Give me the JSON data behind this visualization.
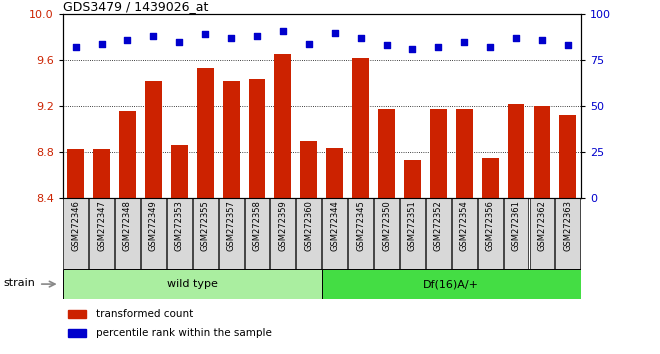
{
  "title": "GDS3479 / 1439026_at",
  "categories": [
    "GSM272346",
    "GSM272347",
    "GSM272348",
    "GSM272349",
    "GSM272353",
    "GSM272355",
    "GSM272357",
    "GSM272358",
    "GSM272359",
    "GSM272360",
    "GSM272344",
    "GSM272345",
    "GSM272350",
    "GSM272351",
    "GSM272352",
    "GSM272354",
    "GSM272356",
    "GSM272361",
    "GSM272362",
    "GSM272363"
  ],
  "bar_values": [
    8.83,
    8.83,
    9.16,
    9.42,
    8.86,
    9.53,
    9.42,
    9.44,
    9.65,
    8.9,
    8.84,
    9.62,
    9.18,
    8.73,
    9.18,
    9.18,
    8.75,
    9.22,
    9.2,
    9.12
  ],
  "percentile_values": [
    82,
    84,
    86,
    88,
    85,
    89,
    87,
    88,
    91,
    84,
    90,
    87,
    83,
    81,
    82,
    85,
    82,
    87,
    86,
    83
  ],
  "ylim_left": [
    8.4,
    10.0
  ],
  "ylim_right": [
    0,
    100
  ],
  "yticks_left": [
    8.4,
    8.8,
    9.2,
    9.6,
    10.0
  ],
  "yticks_right": [
    0,
    25,
    50,
    75,
    100
  ],
  "bar_color": "#cc2200",
  "dot_color": "#0000cc",
  "group1_label": "wild type",
  "group2_label": "Df(16)A/+",
  "group1_count": 10,
  "group2_count": 10,
  "group1_bg": "#aaeea0",
  "group2_bg": "#44dd44",
  "tick_bg": "#d8d8d8",
  "strain_label": "strain",
  "legend_bar_label": "transformed count",
  "legend_dot_label": "percentile rank within the sample",
  "grid_dotted_values": [
    8.8,
    9.2,
    9.6
  ],
  "background_color": "#ffffff",
  "bar_width": 0.65
}
